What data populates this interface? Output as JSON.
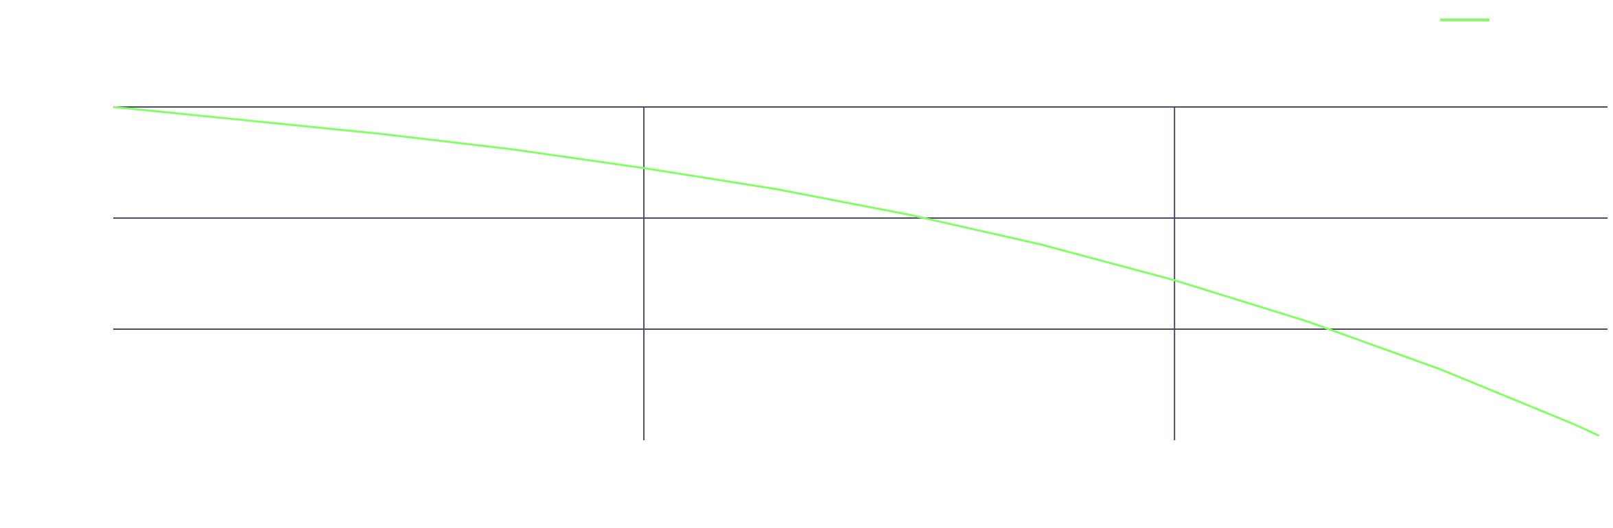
{
  "chart_data": {
    "type": "line",
    "x": [
      0,
      0.25,
      0.5,
      0.75,
      1,
      1.25,
      1.5,
      1.75,
      2,
      2.25,
      2.5,
      2.75,
      2.8
    ],
    "series": [
      {
        "color": "#85ff66",
        "values": [
          3,
          2.88,
          2.76,
          2.62,
          2.45,
          2.26,
          2.03,
          1.76,
          1.44,
          1.07,
          0.64,
          0.15,
          0.04
        ]
      }
    ],
    "xlim": [
      0,
      2.816
    ],
    "xticks": [
      1,
      2
    ],
    "ylim": [
      0,
      3
    ],
    "yticks": [
      1,
      2,
      3
    ],
    "grid": true
  }
}
